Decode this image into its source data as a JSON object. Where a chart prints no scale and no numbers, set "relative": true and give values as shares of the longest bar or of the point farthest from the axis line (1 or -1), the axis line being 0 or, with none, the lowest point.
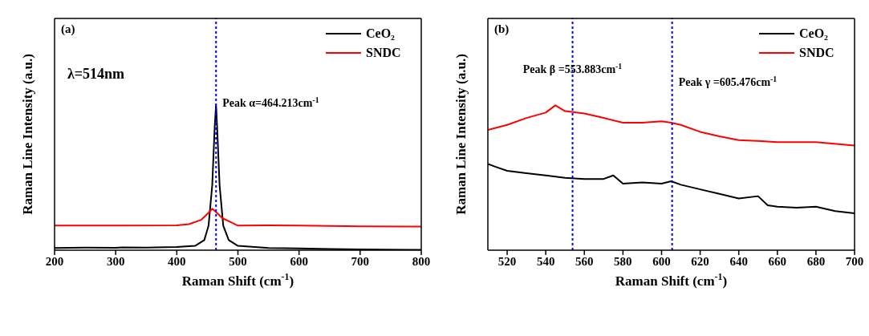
{
  "chart_data": [
    {
      "type": "line",
      "title": "(a)",
      "xlabel": "Raman Shift (cm$^{-1}$)",
      "ylabel": "Raman Line Intensity (a.u.)",
      "annotations": [
        "λ=514nm"
      ],
      "relative": true,
      "xlim": [
        200,
        800
      ],
      "xticks": [
        200,
        300,
        400,
        500,
        600,
        700,
        800
      ],
      "legend": "top right",
      "series": [
        {
          "name": "CeO₂",
          "color": "#000000",
          "x": [
            200,
            250,
            300,
            310,
            350,
            400,
            430,
            445,
            452,
            458,
            462,
            464.2,
            466,
            470,
            476,
            485,
            500,
            550,
            600,
            650,
            700,
            800
          ],
          "values": [
            0.015,
            0.018,
            0.017,
            0.02,
            0.018,
            0.022,
            0.03,
            0.07,
            0.17,
            0.45,
            0.85,
            1,
            0.85,
            0.45,
            0.17,
            0.07,
            0.03,
            0.015,
            0.013,
            0.008,
            0.005,
            0.003
          ]
        },
        {
          "name": "SNDC",
          "color": "#ff0000",
          "x": [
            200,
            300,
            400,
            420,
            440,
            450,
            458,
            465,
            475,
            490,
            500,
            550,
            600,
            700,
            800
          ],
          "values": [
            0.17,
            0.17,
            0.172,
            0.18,
            0.21,
            0.25,
            0.286,
            0.26,
            0.22,
            0.19,
            0.17,
            0.172,
            0.17,
            0.165,
            0.163
          ]
        }
      ],
      "ref_lines": [
        {
          "axis": "x",
          "value": 464.213,
          "label": "Peak α=464.213cm$^{-1}$",
          "color": "#0000ff",
          "line_style": "dotted"
        }
      ]
    },
    {
      "type": "line",
      "title": "(b)",
      "xlabel": "Raman Shift (cm$^{-1}$)",
      "ylabel": "Raman Line Intensity (a.u.)",
      "relative": true,
      "xlim": [
        510,
        700
      ],
      "xticks": [
        520,
        540,
        560,
        580,
        600,
        620,
        640,
        660,
        680,
        700
      ],
      "legend": "top right",
      "series": [
        {
          "name": "CeO₂",
          "color": "#000000",
          "x": [
            510,
            515,
            520,
            530,
            540,
            550,
            560,
            570,
            575,
            580,
            590,
            600,
            605,
            610,
            620,
            630,
            640,
            650,
            655,
            660,
            670,
            680,
            690,
            700
          ],
          "values": [
            0.595,
            0.571,
            0.548,
            0.532,
            0.516,
            0.5,
            0.492,
            0.492,
            0.516,
            0.46,
            0.468,
            0.46,
            0.476,
            0.452,
            0.42,
            0.389,
            0.357,
            0.373,
            0.31,
            0.3,
            0.294,
            0.3,
            0.27,
            0.254
          ]
        },
        {
          "name": "SNDC",
          "color": "#ff0000",
          "x": [
            510,
            520,
            530,
            540,
            545,
            550,
            560,
            570,
            580,
            590,
            600,
            605,
            610,
            620,
            630,
            640,
            650,
            660,
            680,
            700
          ],
          "values": [
            0.83,
            0.865,
            0.913,
            0.95,
            1,
            0.96,
            0.944,
            0.913,
            0.88,
            0.88,
            0.89,
            0.88,
            0.865,
            0.817,
            0.786,
            0.76,
            0.754,
            0.746,
            0.746,
            0.722
          ]
        }
      ],
      "ref_lines": [
        {
          "axis": "x",
          "value": 553.883,
          "label": "Peak β =553.883cm$^{-1}$",
          "color": "#0000ff",
          "line_style": "dotted"
        },
        {
          "axis": "x",
          "value": 605.476,
          "label": "Peak γ =605.476cm$^{-1}$",
          "color": "#0000ff",
          "line_style": "dotted"
        }
      ]
    }
  ]
}
